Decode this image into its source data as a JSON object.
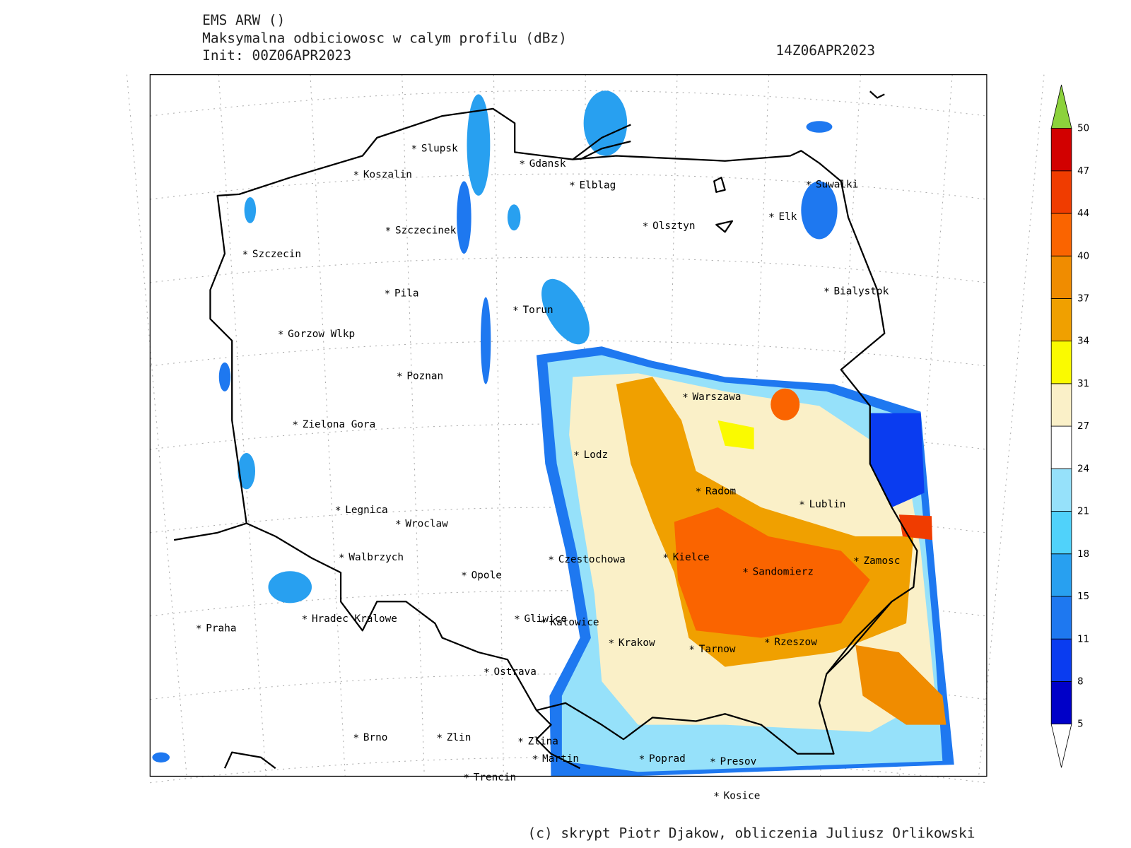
{
  "header": {
    "model": "EMS ARW ()",
    "field": "Maksymalna odbiciowosc w calym profilu (dBz)",
    "init": "Init: 00Z06APR2023",
    "valid": "14Z06APR2023"
  },
  "cities": [
    "Slupsk",
    "Koszalin",
    "Gdansk",
    "Elblag",
    "Szczecinek",
    "Olsztyn",
    "Elk",
    "Suwalki",
    "Szczecin",
    "Pila",
    "Torun",
    "Bialystok",
    "Gorzow Wlkp",
    "Poznan",
    "Warszawa",
    "Zielona Gora",
    "Lodz",
    "Radom",
    "Lublin",
    "Legnica",
    "Wroclaw",
    "Walbrzych",
    "Kielce",
    "Czestochowa",
    "Zamosc",
    "Sandomierz",
    "Opole",
    "Praha",
    "Hradec Kralowe",
    "Gliwice",
    "Katowice",
    "Krakow",
    "Tarnow",
    "Rzeszow",
    "Ostrava",
    "Brno",
    "Zlin",
    "Zlina",
    "Martin",
    "Poprad",
    "Presov",
    "Trencin",
    "Kosice"
  ],
  "colorbar": {
    "levels": [
      "5",
      "8",
      "11",
      "15",
      "18",
      "21",
      "24",
      "27",
      "31",
      "34",
      "37",
      "40",
      "44",
      "47",
      "50"
    ],
    "colors": [
      "#0000c8",
      "#0a3cf0",
      "#1e78f0",
      "#28a0f0",
      "#50d2fa",
      "#96e1fa",
      "#ffffff",
      "#faf0c8",
      "#fafa00",
      "#f0a000",
      "#f08c00",
      "#fa6400",
      "#f03c00",
      "#d20000"
    ],
    "above_color": "#8cd23c",
    "below_color": "#ffffff"
  },
  "footer": "(c) skrypt Piotr Djakow, obliczenia Juliusz Orlikowski"
}
